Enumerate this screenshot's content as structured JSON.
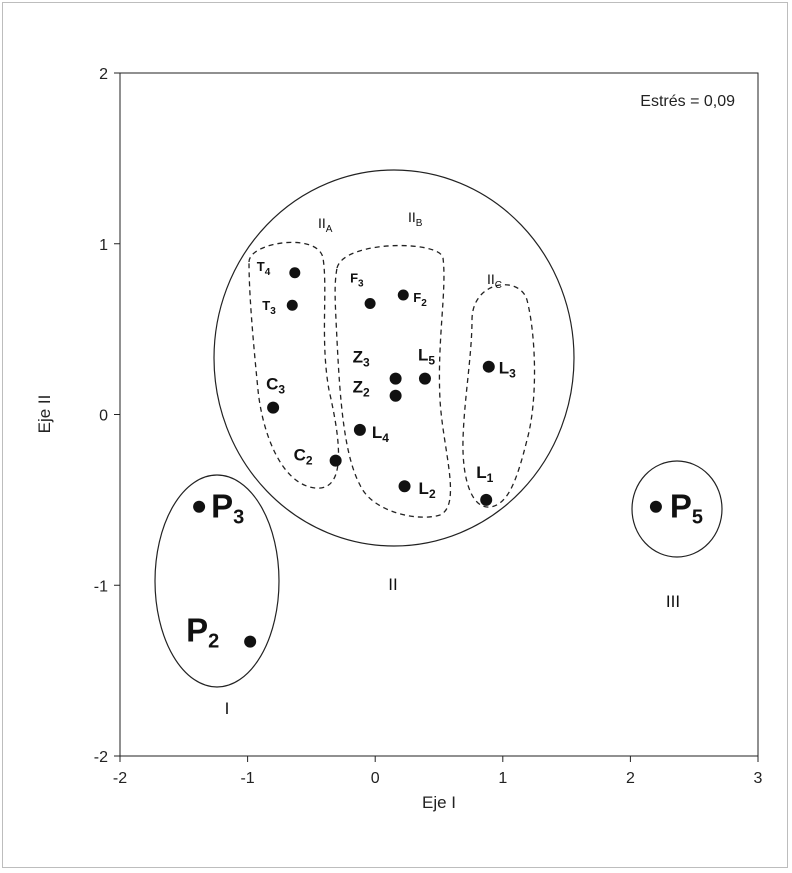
{
  "chart_data": {
    "type": "scatter",
    "xlabel": "Eje I",
    "ylabel": "Eje II",
    "xlim": [
      -2,
      3
    ],
    "ylim": [
      -2,
      2
    ],
    "xticks": [
      "-2",
      "-1",
      "0",
      "1",
      "2",
      "3"
    ],
    "yticks": [
      "-2",
      "-1",
      "0",
      "1",
      "2"
    ],
    "annotation": "Estrés = 0,09",
    "grid": false,
    "points": [
      {
        "base": "T",
        "sub": "4",
        "x": -0.63,
        "y": 0.83,
        "size": "small"
      },
      {
        "base": "T",
        "sub": "3",
        "x": -0.65,
        "y": 0.64,
        "size": "small"
      },
      {
        "base": "C",
        "sub": "3",
        "x": -0.8,
        "y": 0.04,
        "size": "medium"
      },
      {
        "base": "C",
        "sub": "2",
        "x": -0.31,
        "y": -0.27,
        "size": "medium"
      },
      {
        "base": "F",
        "sub": "3",
        "x": -0.04,
        "y": 0.65,
        "size": "small"
      },
      {
        "base": "F",
        "sub": "2",
        "x": 0.22,
        "y": 0.7,
        "size": "small"
      },
      {
        "base": "Z",
        "sub": "3",
        "x": 0.16,
        "y": 0.21,
        "size": "medium"
      },
      {
        "base": "Z",
        "sub": "2",
        "x": 0.16,
        "y": 0.11,
        "size": "medium"
      },
      {
        "base": "L",
        "sub": "5",
        "x": 0.39,
        "y": 0.21,
        "size": "medium"
      },
      {
        "base": "L",
        "sub": "4",
        "x": -0.12,
        "y": -0.09,
        "size": "medium"
      },
      {
        "base": "L",
        "sub": "2",
        "x": 0.23,
        "y": -0.42,
        "size": "medium"
      },
      {
        "base": "L",
        "sub": "3",
        "x": 0.89,
        "y": 0.28,
        "size": "medium"
      },
      {
        "base": "L",
        "sub": "1",
        "x": 0.87,
        "y": -0.5,
        "size": "medium"
      },
      {
        "base": "P",
        "sub": "3",
        "x": -1.38,
        "y": -0.54,
        "size": "large"
      },
      {
        "base": "P",
        "sub": "2",
        "x": -0.98,
        "y": -1.33,
        "size": "large"
      },
      {
        "base": "P",
        "sub": "5",
        "x": 2.2,
        "y": -0.54,
        "size": "large"
      }
    ],
    "groups": [
      {
        "label": "I",
        "members": [
          "P3",
          "P2"
        ]
      },
      {
        "label": "II",
        "members": [
          "T4",
          "T3",
          "C3",
          "C2",
          "F3",
          "F2",
          "Z3",
          "Z2",
          "L5",
          "L4",
          "L2",
          "L3",
          "L1"
        ]
      },
      {
        "label": "III",
        "members": [
          "P5"
        ]
      }
    ],
    "subgroups": [
      {
        "base": "II",
        "sub": "A",
        "members": [
          "T4",
          "T3",
          "C3",
          "C2"
        ]
      },
      {
        "base": "II",
        "sub": "B",
        "members": [
          "F3",
          "F2",
          "Z3",
          "Z2",
          "L5",
          "L4",
          "L2"
        ]
      },
      {
        "base": "II",
        "sub": "C",
        "members": [
          "L3",
          "L1"
        ]
      }
    ]
  }
}
